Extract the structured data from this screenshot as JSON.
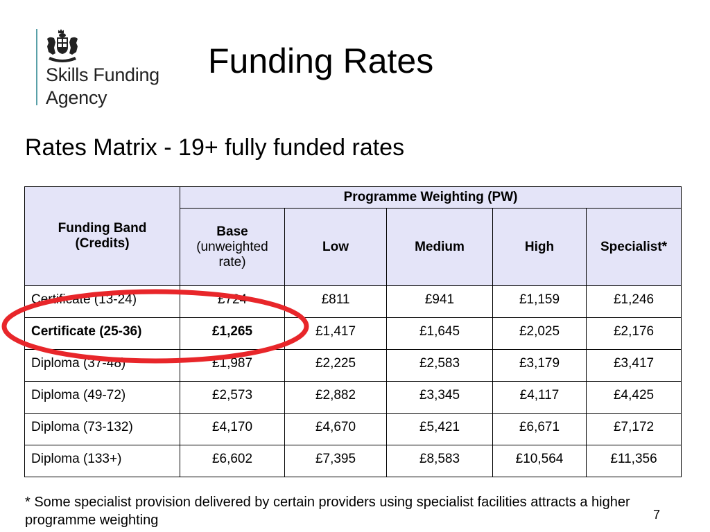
{
  "logo": {
    "text": "Skills Funding\nAgency"
  },
  "slide": {
    "title": "Funding Rates",
    "subtitle": "Rates Matrix - 19+ fully funded rates",
    "footnote": "* Some specialist provision delivered by certain providers using specialist facilities attracts a higher programme weighting",
    "page_number": "7"
  },
  "table": {
    "band_header": "Funding Band (Credits)",
    "group_header": "Programme Weighting (PW)",
    "base_header": {
      "label": "Base",
      "note": "(unweighted rate)"
    },
    "columns": [
      "Low",
      "Medium",
      "High",
      "Specialist*"
    ],
    "rows": [
      {
        "band": "Certificate (13-24)",
        "values": [
          "£724",
          "£811",
          "£941",
          "£1,159",
          "£1,246"
        ]
      },
      {
        "band": "Certificate (25-36)",
        "values": [
          "£1,265",
          "£1,417",
          "£1,645",
          "£2,025",
          "£2,176"
        ]
      },
      {
        "band": "Diploma (37-48)",
        "values": [
          "£1,987",
          "£2,225",
          "£2,583",
          "£3,179",
          "£3,417"
        ]
      },
      {
        "band": "Diploma (49-72)",
        "values": [
          "£2,573",
          "£2,882",
          "£3,345",
          "£4,117",
          "£4,425"
        ]
      },
      {
        "band": "Diploma (73-132)",
        "values": [
          "£4,170",
          "£4,670",
          "£5,421",
          "£6,671",
          "£7,172"
        ]
      },
      {
        "band": "Diploma (133+)",
        "values": [
          "£6,602",
          "£7,395",
          "£8,583",
          "£10,564",
          "£11,356"
        ]
      }
    ]
  },
  "annotation": {
    "color": "#e8262a",
    "target": "Certificate (25-36)"
  },
  "colors": {
    "header_background": "#e4e4f8",
    "logo_rule": "#5aa0a8"
  }
}
